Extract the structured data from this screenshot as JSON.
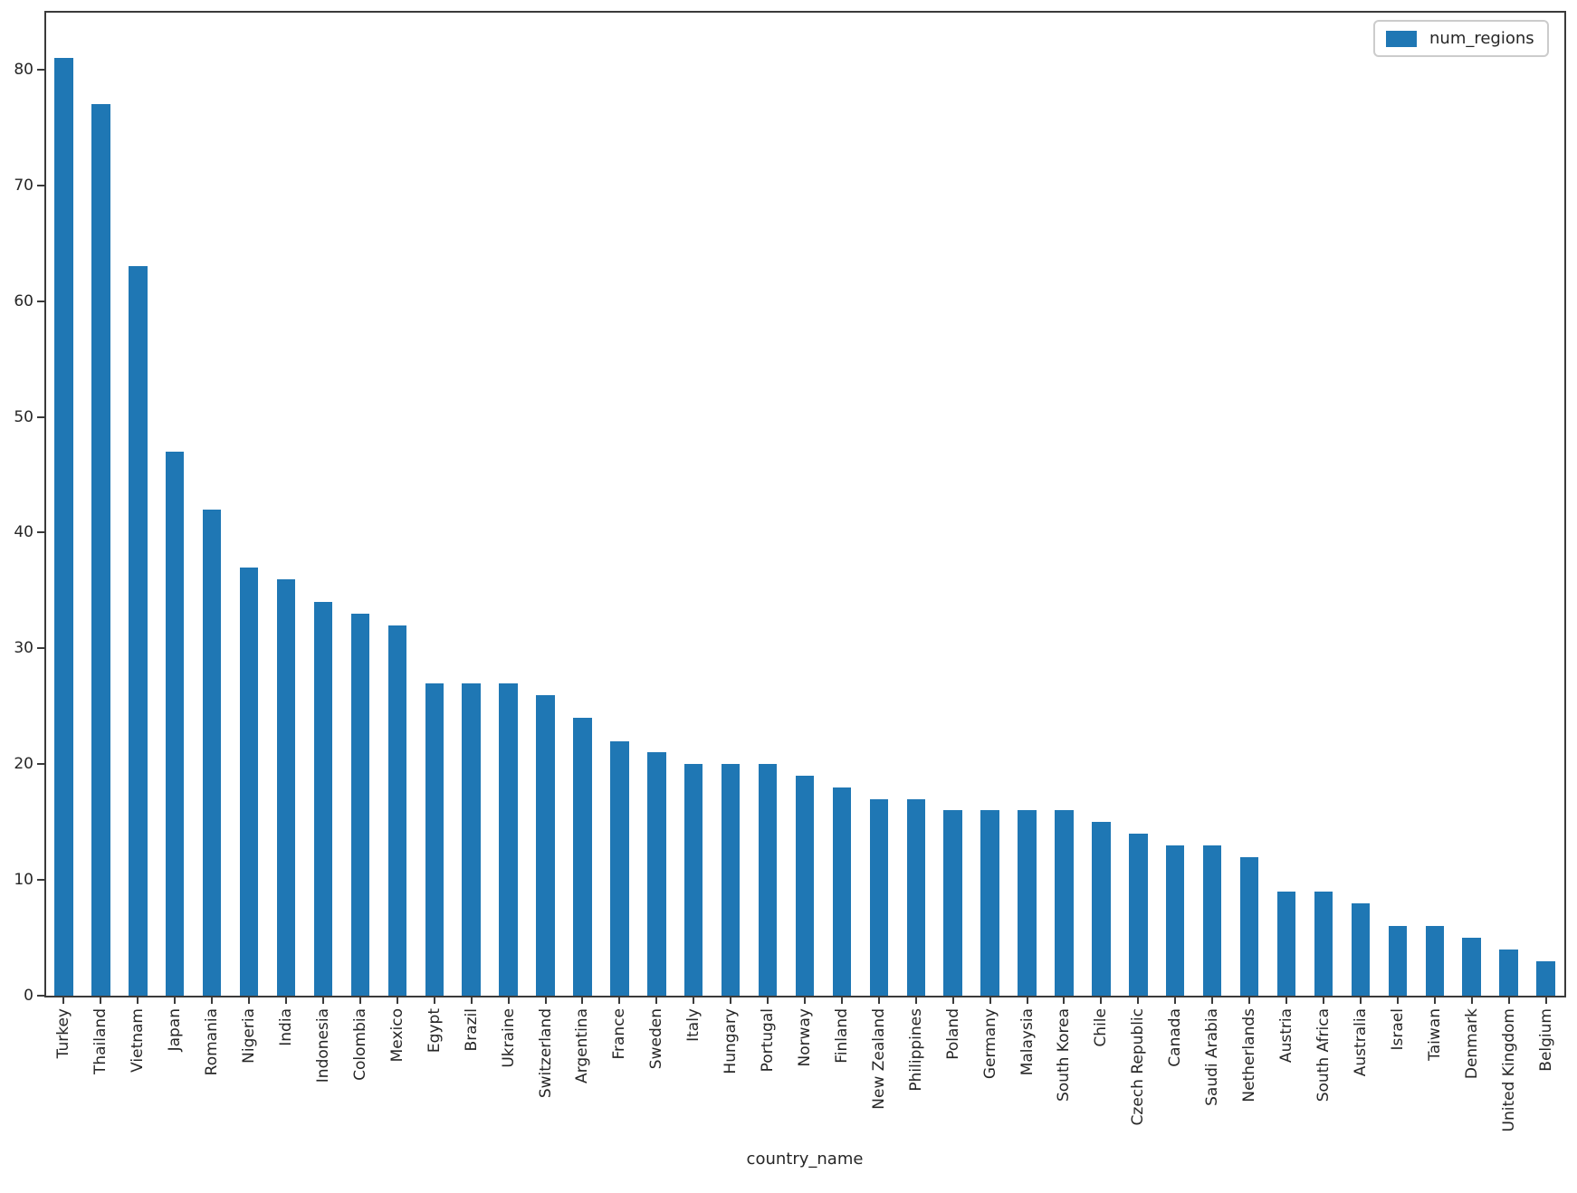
{
  "figure": {
    "xlabel": "country_name"
  },
  "chart_data": {
    "type": "bar",
    "title": "",
    "xlabel": "country_name",
    "ylabel": "",
    "legend": [
      "num_regions"
    ],
    "legend_position": "upper right",
    "grid": false,
    "bar_color": "#1f77b4",
    "axis_color": "#3a3a3a",
    "text_color": "#262626",
    "ylim": [
      0,
      85
    ],
    "yticks": [
      0,
      10,
      20,
      30,
      40,
      50,
      60,
      70,
      80
    ],
    "categories": [
      "Turkey",
      "Thailand",
      "Vietnam",
      "Japan",
      "Romania",
      "Nigeria",
      "India",
      "Indonesia",
      "Colombia",
      "Mexico",
      "Egypt",
      "Brazil",
      "Ukraine",
      "Switzerland",
      "Argentina",
      "France",
      "Sweden",
      "Italy",
      "Hungary",
      "Portugal",
      "Norway",
      "Finland",
      "New Zealand",
      "Philippines",
      "Poland",
      "Germany",
      "Malaysia",
      "South Korea",
      "Chile",
      "Czech Republic",
      "Canada",
      "Saudi Arabia",
      "Netherlands",
      "Austria",
      "South Africa",
      "Australia",
      "Israel",
      "Taiwan",
      "Denmark",
      "United Kingdom",
      "Belgium"
    ],
    "values": [
      81,
      77,
      63,
      47,
      42,
      37,
      36,
      34,
      33,
      32,
      27,
      27,
      27,
      26,
      24,
      22,
      21,
      20,
      20,
      20,
      19,
      18,
      17,
      17,
      16,
      16,
      16,
      16,
      15,
      14,
      13,
      13,
      12,
      9,
      9,
      8,
      6,
      6,
      5,
      4,
      3
    ]
  }
}
